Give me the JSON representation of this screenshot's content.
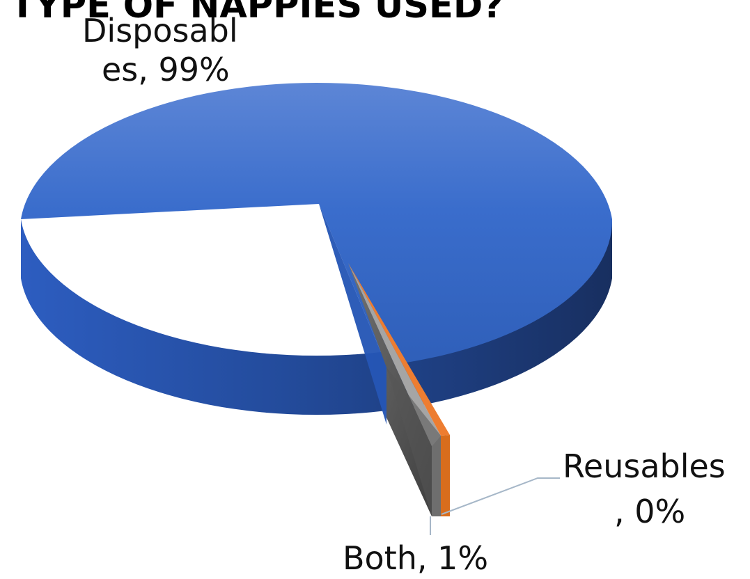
{
  "chart_data": {
    "type": "pie",
    "title": "TYPE OF NAPPIES USED?",
    "categories": [
      "Disposables",
      "Reusables",
      "Both"
    ],
    "values": [
      99,
      0,
      1
    ],
    "data_labels": {
      "disposables": [
        "Disposabl",
        "es, 99%"
      ],
      "reusables": [
        "Reusables",
        ", 0%"
      ],
      "both": [
        "Both, 1%"
      ]
    },
    "colors": {
      "disposables": "#3f6fd1",
      "reusables": "#ed7d31",
      "both": "#a5a5a5",
      "leader_line": "#a6b7c8"
    },
    "style": "3d-exploded",
    "legend": "none"
  }
}
